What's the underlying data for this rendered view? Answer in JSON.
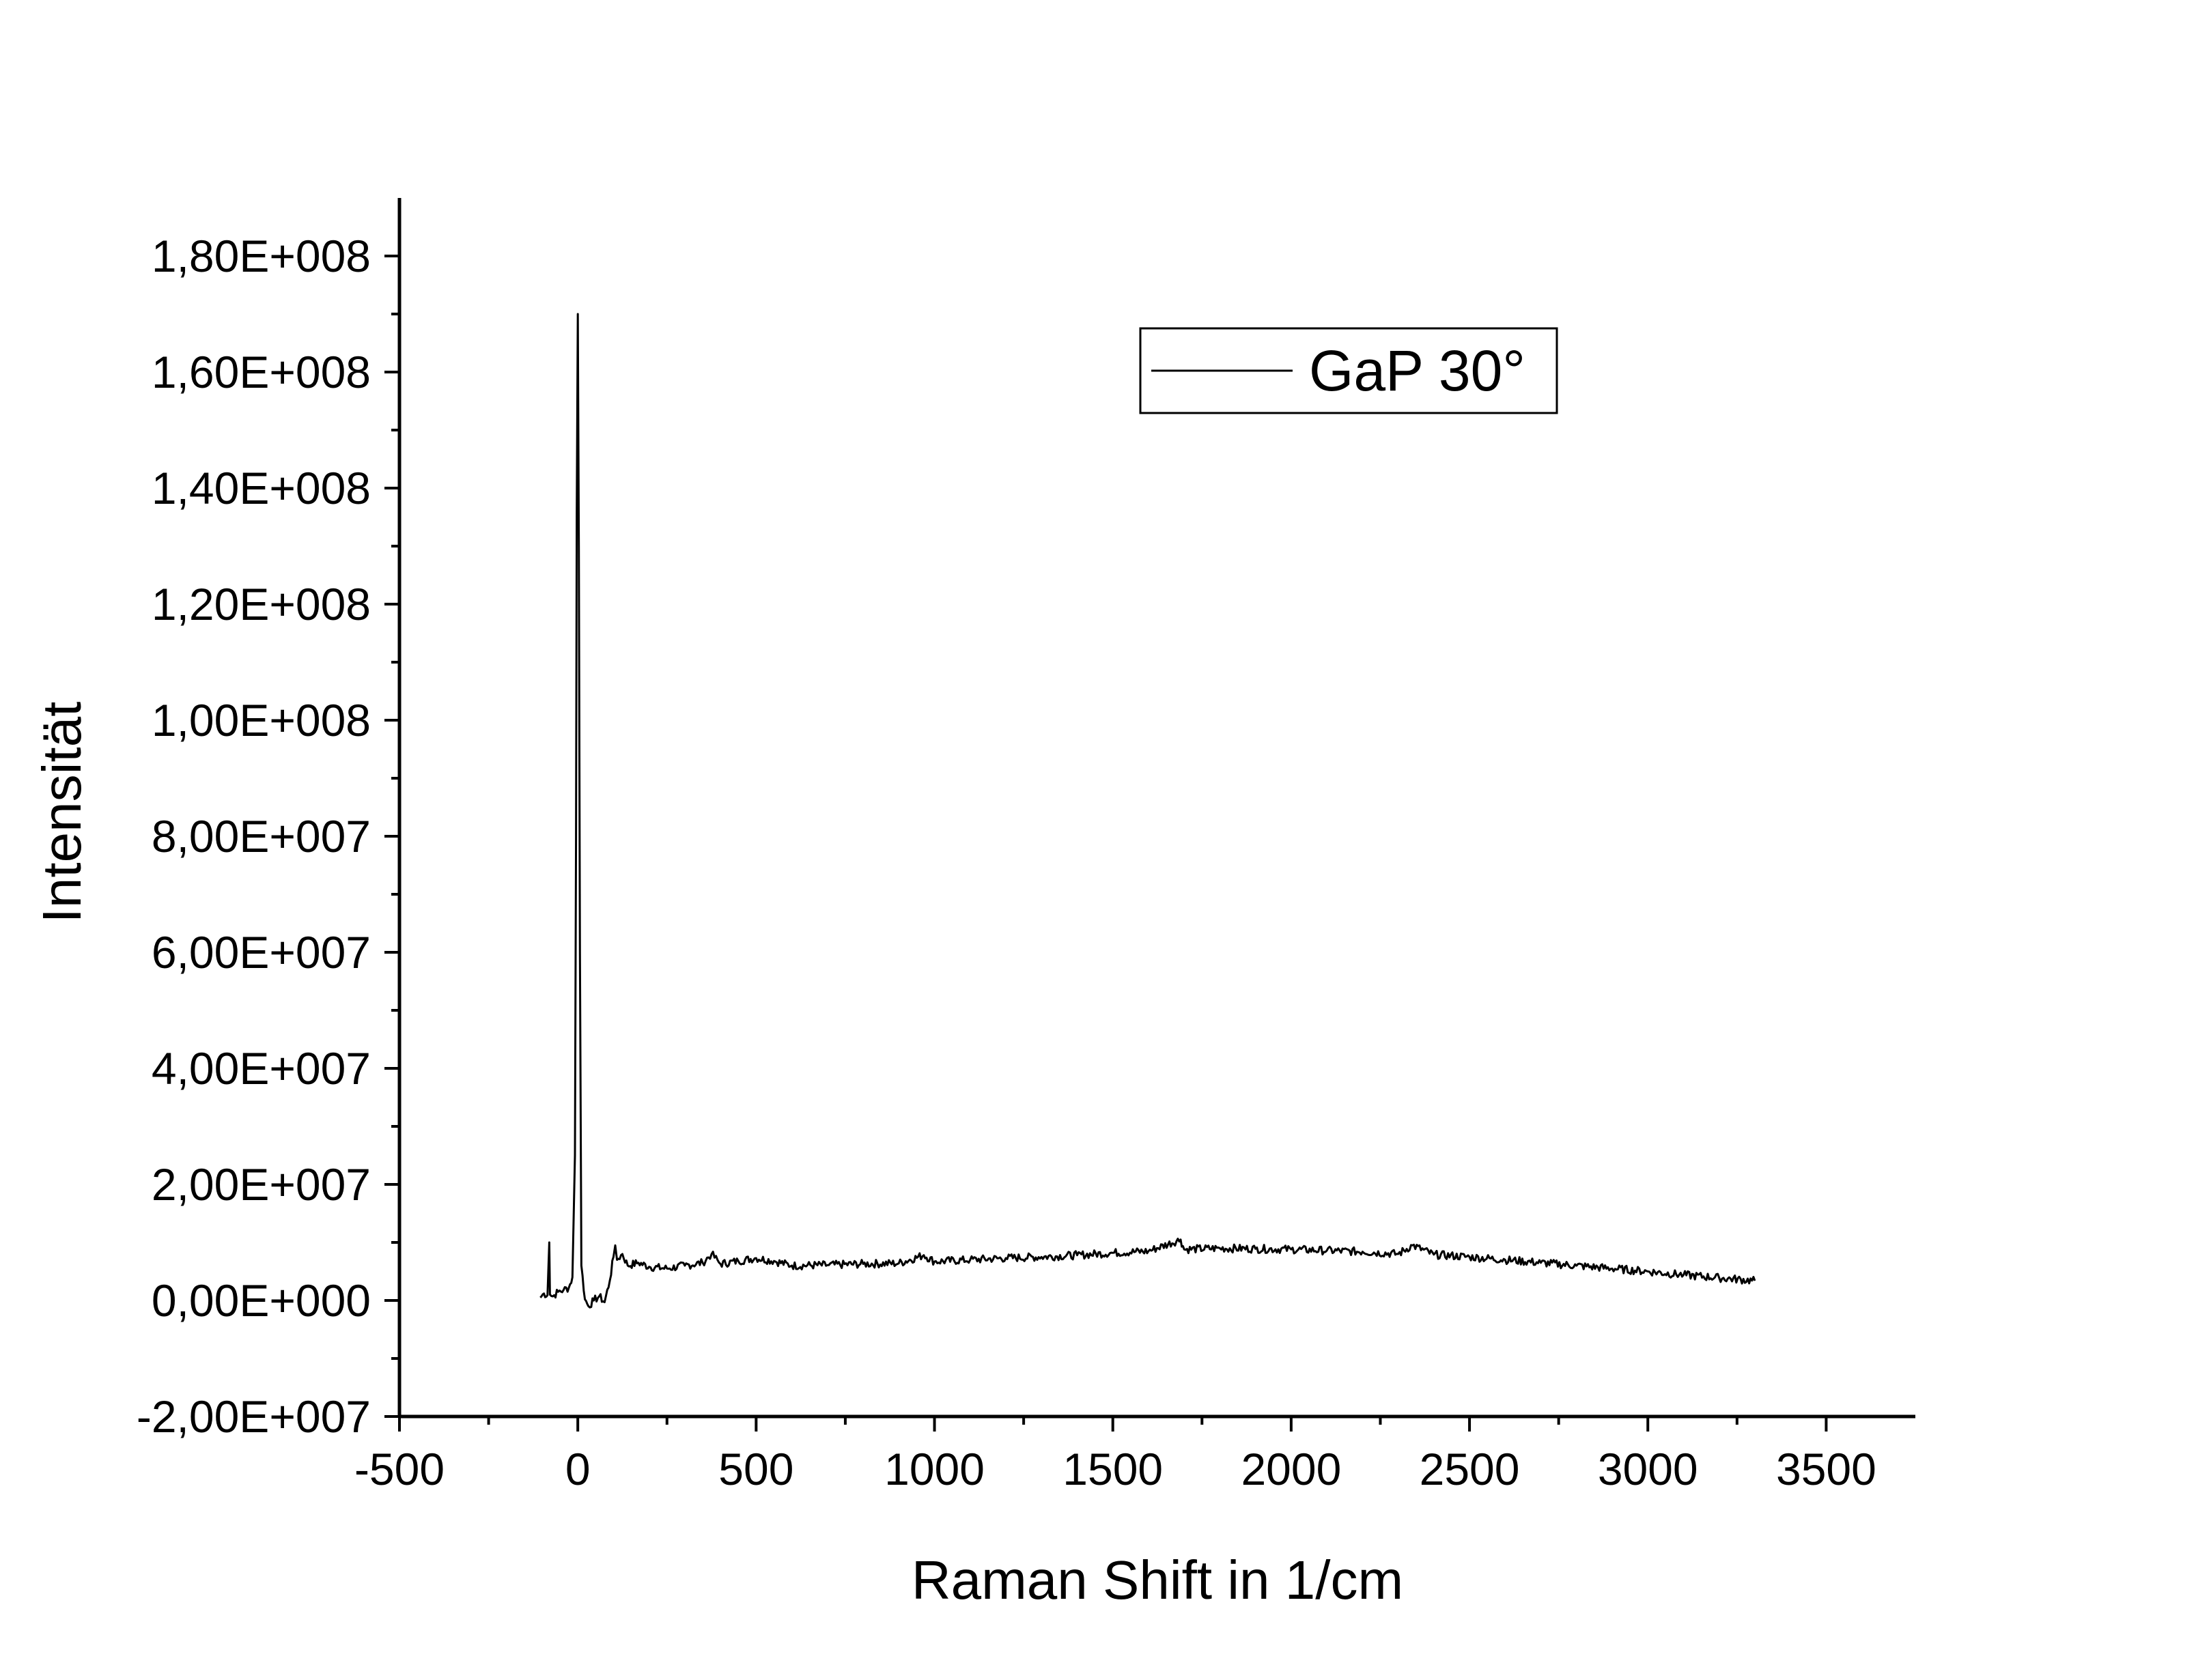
{
  "chart_data": {
    "type": "line",
    "xlabel": "Raman Shift in 1/cm",
    "ylabel": "Intensität",
    "xlim": [
      -500,
      3750
    ],
    "ylim": [
      -20000000,
      190000000
    ],
    "x_ticks": [
      -500,
      0,
      500,
      1000,
      1500,
      2000,
      2500,
      3000,
      3500
    ],
    "x_tick_labels": [
      "-500",
      "0",
      "500",
      "1000",
      "1500",
      "2000",
      "2500",
      "3000",
      "3500"
    ],
    "y_ticks": [
      -20000000,
      0,
      20000000,
      40000000,
      60000000,
      80000000,
      100000000,
      120000000,
      140000000,
      160000000,
      180000000
    ],
    "y_tick_labels": [
      "-2,00E+007",
      "0,00E+000",
      "2,00E+007",
      "4,00E+007",
      "6,00E+007",
      "8,00E+007",
      "1,00E+008",
      "1,20E+008",
      "1,40E+008",
      "1,60E+008",
      "1,80E+008"
    ],
    "grid": false,
    "legend_position": "top-right",
    "line_color": "#000000",
    "series": [
      {
        "name": "GaP 30°",
        "points": [
          [
            -105,
            500000
          ],
          [
            -95,
            1200000
          ],
          [
            -85,
            900000
          ],
          [
            -80,
            10000000
          ],
          [
            -78,
            1000000
          ],
          [
            -70,
            700000
          ],
          [
            -55,
            1500000
          ],
          [
            -40,
            1800000
          ],
          [
            -25,
            2200000
          ],
          [
            -15,
            4000000
          ],
          [
            -8,
            25000000
          ],
          [
            -5,
            80000000
          ],
          [
            -3,
            135000000
          ],
          [
            0,
            170000000
          ],
          [
            3,
            130000000
          ],
          [
            6,
            60000000
          ],
          [
            10,
            6000000
          ],
          [
            20,
            200000
          ],
          [
            30,
            -1000000
          ],
          [
            45,
            0
          ],
          [
            60,
            700000
          ],
          [
            75,
            -300000
          ],
          [
            90,
            3500000
          ],
          [
            100,
            7500000
          ],
          [
            105,
            9500000
          ],
          [
            110,
            7000000
          ],
          [
            125,
            8000000
          ],
          [
            140,
            6000000
          ],
          [
            170,
            6500000
          ],
          [
            200,
            5800000
          ],
          [
            250,
            5500000
          ],
          [
            300,
            6000000
          ],
          [
            350,
            6500000
          ],
          [
            375,
            8000000
          ],
          [
            400,
            6300000
          ],
          [
            450,
            6800000
          ],
          [
            500,
            7300000
          ],
          [
            550,
            6800000
          ],
          [
            600,
            6000000
          ],
          [
            700,
            6100000
          ],
          [
            800,
            6300000
          ],
          [
            900,
            6400000
          ],
          [
            970,
            7800000
          ],
          [
            1000,
            6700000
          ],
          [
            1100,
            7000000
          ],
          [
            1200,
            7300000
          ],
          [
            1300,
            7500000
          ],
          [
            1400,
            7800000
          ],
          [
            1500,
            8200000
          ],
          [
            1600,
            8500000
          ],
          [
            1690,
            10500000
          ],
          [
            1700,
            8800000
          ],
          [
            1800,
            9000000
          ],
          [
            1900,
            8900000
          ],
          [
            2000,
            8800000
          ],
          [
            2100,
            8600000
          ],
          [
            2200,
            8400000
          ],
          [
            2300,
            8000000
          ],
          [
            2340,
            9500000
          ],
          [
            2400,
            7900000
          ],
          [
            2500,
            7500000
          ],
          [
            2600,
            7000000
          ],
          [
            2700,
            6500000
          ],
          [
            2800,
            6000000
          ],
          [
            2900,
            5500000
          ],
          [
            3000,
            5000000
          ],
          [
            3100,
            4400000
          ],
          [
            3200,
            3900000
          ],
          [
            3300,
            3400000
          ]
        ]
      }
    ]
  }
}
